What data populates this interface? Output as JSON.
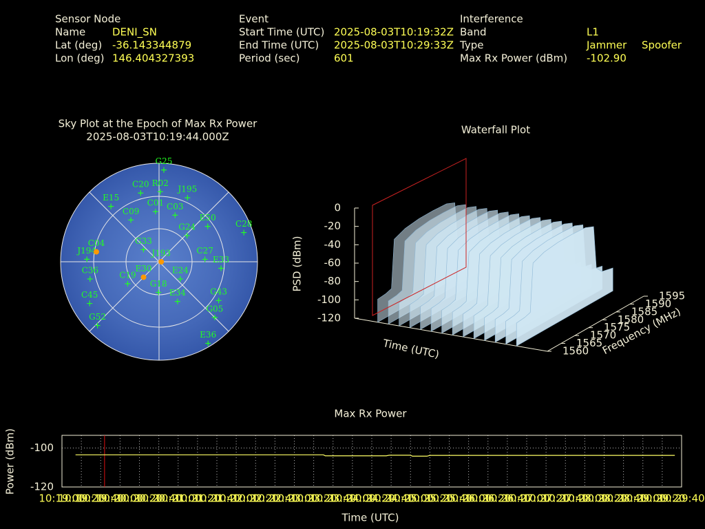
{
  "header": {
    "sensor": {
      "title": "Sensor Node",
      "rows": [
        [
          "Name",
          "DENI_SN"
        ],
        [
          "Lat (deg)",
          "-36.143344879"
        ],
        [
          "Lon (deg)",
          "146.404327393"
        ]
      ]
    },
    "event": {
      "title": "Event",
      "rows": [
        [
          "Start Time (UTC)",
          "2025-08-03T10:19:32Z"
        ],
        [
          "End Time (UTC)",
          "2025-08-03T10:29:33Z"
        ],
        [
          "Period (sec)",
          "601"
        ]
      ]
    },
    "interference": {
      "title": "Interference",
      "rows": [
        [
          "Band",
          "L1"
        ],
        [
          "Type",
          "Jammer",
          "Spoofer"
        ],
        [
          "Max Rx Power (dBm)",
          "-102.90"
        ]
      ]
    }
  },
  "chart_data": [
    {
      "type": "polar-scatter",
      "title": "Sky Plot at the Epoch of Max Rx Power",
      "subtitle": "2025-08-03T10:19:44.000Z",
      "marker_color": "#22ff22",
      "satellites": [
        {
          "name": "G25",
          "az": 3,
          "el": 6
        },
        {
          "name": "R02",
          "az": 1,
          "el": 26
        },
        {
          "name": "J195",
          "az": 24,
          "el": 26
        },
        {
          "name": "C03",
          "az": 19,
          "el": 45
        },
        {
          "name": "E50",
          "az": 54,
          "el": 35
        },
        {
          "name": "C28",
          "az": 71,
          "el": 8
        },
        {
          "name": "G24",
          "az": 47,
          "el": 55
        },
        {
          "name": "C27",
          "az": 87,
          "el": 48
        },
        {
          "name": "E33",
          "az": 96,
          "el": 33
        },
        {
          "name": "J194",
          "az": 272,
          "el": 24
        },
        {
          "name": "C36",
          "az": 256,
          "el": 25
        },
        {
          "name": "E24",
          "az": 129,
          "el": 65
        },
        {
          "name": "C19",
          "az": 235,
          "el": 55
        },
        {
          "name": "G18",
          "az": 181,
          "el": 62
        },
        {
          "name": "E34",
          "az": 155,
          "el": 50
        },
        {
          "name": "G43",
          "az": 123,
          "el": 25
        },
        {
          "name": "G05",
          "az": 135,
          "el": 18
        },
        {
          "name": "E36",
          "az": 149,
          "el": 3
        },
        {
          "name": "C45",
          "az": 239,
          "el": 16
        },
        {
          "name": "G52",
          "az": 224,
          "el": 9
        },
        {
          "name": "E15",
          "az": 319,
          "el": 23
        },
        {
          "name": "G33",
          "az": 308,
          "el": 72
        },
        {
          "name": "C09",
          "az": 326,
          "el": 44
        },
        {
          "name": "C20",
          "az": 345,
          "el": 25
        },
        {
          "name": "C01",
          "az": 356,
          "el": 44
        },
        {
          "name": "C04",
          "az": 279,
          "el": 32,
          "color": "#ff9900"
        },
        {
          "name": "E30",
          "az": 225,
          "el": 70,
          "color": "#ff9900"
        },
        {
          "name": "J193",
          "az": 90,
          "el": 88,
          "color": "#ff9900"
        }
      ]
    },
    {
      "type": "waterfall",
      "title": "Waterfall Plot",
      "y_label": "PSD (dBm)",
      "x_label": "Time (UTC)",
      "z_label": "Frequency (MHz)",
      "ylim": [
        -120,
        0
      ],
      "yticks": [
        0,
        -20,
        -40,
        -60,
        -80,
        -100,
        -120
      ],
      "zlim": [
        1560,
        1595
      ],
      "zticks": [
        1560,
        1565,
        1570,
        1575,
        1580,
        1585,
        1590,
        1595
      ],
      "frequency": [
        1560,
        1563,
        1565,
        1566,
        1570,
        1575,
        1580,
        1585,
        1588,
        1589,
        1591,
        1595
      ],
      "psd": [
        -95,
        -94,
        -92,
        -40,
        -35,
        -33,
        -33,
        -34,
        -38,
        -85,
        -92,
        -95
      ],
      "color": "#cfe6f2",
      "marker_color": "#cc2222"
    },
    {
      "type": "line",
      "title": "Max Rx Power",
      "x_label": "Time (UTC)",
      "y_label": "Power (dBm)",
      "color": "#ffff66",
      "marker_color": "#dd1111",
      "grid": true,
      "x": [
        37154,
        37410,
        37412,
        37475,
        37478,
        37500,
        37502,
        37517,
        37520,
        37773
      ],
      "values": [
        -103.5,
        -103.5,
        -104.0,
        -104.0,
        -103.7,
        -103.7,
        -104.2,
        -104.2,
        -103.8,
        -103.8
      ],
      "marker_x": 37184,
      "ylim": [
        -120,
        -93.5
      ],
      "yticks": [
        -120,
        -100
      ],
      "xlim": [
        37140,
        37780
      ],
      "xticks": [
        {
          "value": 37140,
          "label": "10:19:00"
        },
        {
          "value": 37160,
          "label": "10:19:20"
        },
        {
          "value": 37180,
          "label": "10:19:40"
        },
        {
          "value": 37200,
          "label": "10:20:00"
        },
        {
          "value": 37220,
          "label": "10:20:20"
        },
        {
          "value": 37240,
          "label": "10:20:40"
        },
        {
          "value": 37260,
          "label": "10:21:00"
        },
        {
          "value": 37280,
          "label": "10:21:20"
        },
        {
          "value": 37300,
          "label": "10:21:40"
        },
        {
          "value": 37320,
          "label": "10:22:00"
        },
        {
          "value": 37340,
          "label": "10:22:20"
        },
        {
          "value": 37360,
          "label": "10:22:40"
        },
        {
          "value": 37380,
          "label": "10:23:00"
        },
        {
          "value": 37400,
          "label": "10:23:20"
        },
        {
          "value": 37420,
          "label": "10:23:40"
        },
        {
          "value": 37440,
          "label": "10:24:00"
        },
        {
          "value": 37460,
          "label": "10:24:20"
        },
        {
          "value": 37480,
          "label": "10:24:40"
        },
        {
          "value": 37500,
          "label": "10:25:00"
        },
        {
          "value": 37520,
          "label": "10:25:20"
        },
        {
          "value": 37540,
          "label": "10:25:40"
        },
        {
          "value": 37560,
          "label": "10:26:00"
        },
        {
          "value": 37580,
          "label": "10:26:20"
        },
        {
          "value": 37600,
          "label": "10:26:40"
        },
        {
          "value": 37620,
          "label": "10:27:00"
        },
        {
          "value": 37640,
          "label": "10:27:20"
        },
        {
          "value": 37660,
          "label": "10:27:40"
        },
        {
          "value": 37680,
          "label": "10:28:00"
        },
        {
          "value": 37700,
          "label": "10:28:20"
        },
        {
          "value": 37720,
          "label": "10:28:40"
        },
        {
          "value": 37740,
          "label": "10:29:00"
        },
        {
          "value": 37760,
          "label": "10:29:20"
        },
        {
          "value": 37780,
          "label": "10:29:40"
        }
      ]
    }
  ]
}
